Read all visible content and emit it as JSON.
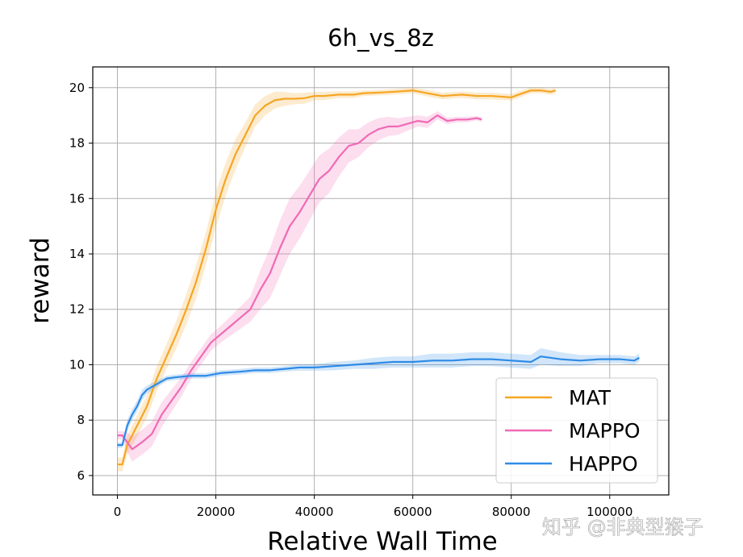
{
  "chart_data": {
    "type": "line",
    "title": "6h_vs_8z",
    "xlabel": "Relative Wall Time",
    "ylabel": "reward",
    "xlim": [
      -5000,
      112000
    ],
    "ylim": [
      5.3,
      20.75
    ],
    "xticks": [
      0,
      20000,
      40000,
      60000,
      80000,
      100000
    ],
    "yticks": [
      6,
      8,
      10,
      12,
      14,
      16,
      18,
      20
    ],
    "grid": true,
    "legend_position": "bottom-right",
    "series": [
      {
        "name": "MAT",
        "color": "#f5a623",
        "x": [
          0,
          1000,
          2000,
          4000,
          6000,
          8000,
          10000,
          12000,
          14000,
          16000,
          18000,
          20000,
          22000,
          24000,
          26000,
          28000,
          30000,
          32000,
          34000,
          36000,
          38000,
          40000,
          42000,
          45000,
          48000,
          50000,
          53000,
          56000,
          60000,
          63000,
          66000,
          70000,
          73000,
          76000,
          80000,
          82000,
          84000,
          86000,
          88000,
          89000
        ],
        "y": [
          6.4,
          6.4,
          7.1,
          7.8,
          8.5,
          9.5,
          10.3,
          11.1,
          12.0,
          13.0,
          14.2,
          15.6,
          16.7,
          17.6,
          18.3,
          19.0,
          19.35,
          19.55,
          19.6,
          19.6,
          19.62,
          19.7,
          19.7,
          19.75,
          19.75,
          19.8,
          19.82,
          19.85,
          19.9,
          19.8,
          19.7,
          19.75,
          19.7,
          19.7,
          19.65,
          19.78,
          19.9,
          19.9,
          19.85,
          19.9
        ],
        "band": [
          0.25,
          0.25,
          0.35,
          0.4,
          0.4,
          0.45,
          0.45,
          0.5,
          0.55,
          0.6,
          0.6,
          0.65,
          0.6,
          0.55,
          0.45,
          0.4,
          0.35,
          0.3,
          0.25,
          0.2,
          0.2,
          0.15,
          0.15,
          0.12,
          0.12,
          0.1,
          0.1,
          0.1,
          0.1,
          0.12,
          0.12,
          0.12,
          0.12,
          0.12,
          0.12,
          0.12,
          0.1,
          0.1,
          0.1,
          0.1
        ]
      },
      {
        "name": "MAPPO",
        "color": "#f06ab4",
        "x": [
          0,
          1000,
          2000,
          3000,
          5000,
          7000,
          9000,
          11000,
          13000,
          15000,
          17000,
          19000,
          21000,
          23000,
          25000,
          27000,
          29000,
          31000,
          33000,
          35000,
          37000,
          39000,
          41000,
          43000,
          45000,
          47000,
          49000,
          51000,
          53000,
          55000,
          57000,
          59000,
          61000,
          63000,
          65000,
          67000,
          69000,
          71000,
          73000,
          74000
        ],
        "y": [
          7.45,
          7.45,
          7.2,
          6.95,
          7.2,
          7.5,
          8.2,
          8.7,
          9.2,
          9.8,
          10.3,
          10.8,
          11.1,
          11.4,
          11.7,
          12.0,
          12.7,
          13.3,
          14.2,
          15.0,
          15.5,
          16.1,
          16.7,
          17.0,
          17.5,
          17.9,
          18.0,
          18.3,
          18.5,
          18.6,
          18.6,
          18.7,
          18.8,
          18.75,
          19.0,
          18.8,
          18.85,
          18.85,
          18.9,
          18.85
        ],
        "band": [
          0.15,
          0.15,
          0.35,
          0.45,
          0.45,
          0.45,
          0.45,
          0.4,
          0.35,
          0.3,
          0.3,
          0.3,
          0.3,
          0.35,
          0.4,
          0.45,
          0.7,
          0.9,
          1.0,
          1.0,
          0.95,
          0.9,
          0.85,
          0.8,
          0.7,
          0.6,
          0.5,
          0.45,
          0.4,
          0.35,
          0.3,
          0.25,
          0.2,
          0.2,
          0.15,
          0.12,
          0.1,
          0.1,
          0.08,
          0.08
        ]
      },
      {
        "name": "HAPPO",
        "color": "#2f8be6",
        "x": [
          0,
          1000,
          2000,
          3000,
          4000,
          5000,
          6000,
          8000,
          10000,
          12000,
          15000,
          18000,
          21000,
          25000,
          28000,
          31000,
          34000,
          37000,
          40000,
          44000,
          48000,
          52000,
          56000,
          60000,
          64000,
          68000,
          72000,
          76000,
          80000,
          84000,
          86000,
          90000,
          94000,
          98000,
          102000,
          105000,
          106000
        ],
        "y": [
          7.1,
          7.1,
          7.8,
          8.2,
          8.5,
          8.9,
          9.1,
          9.3,
          9.5,
          9.55,
          9.6,
          9.6,
          9.7,
          9.75,
          9.8,
          9.8,
          9.85,
          9.9,
          9.9,
          9.95,
          10.0,
          10.05,
          10.1,
          10.1,
          10.15,
          10.15,
          10.2,
          10.2,
          10.15,
          10.1,
          10.3,
          10.2,
          10.15,
          10.2,
          10.2,
          10.15,
          10.25
        ],
        "band": [
          0.1,
          0.1,
          0.2,
          0.2,
          0.2,
          0.2,
          0.15,
          0.12,
          0.1,
          0.1,
          0.1,
          0.1,
          0.1,
          0.1,
          0.1,
          0.1,
          0.1,
          0.12,
          0.12,
          0.15,
          0.15,
          0.2,
          0.2,
          0.2,
          0.25,
          0.25,
          0.25,
          0.25,
          0.25,
          0.25,
          0.3,
          0.25,
          0.2,
          0.15,
          0.15,
          0.15,
          0.15
        ]
      }
    ]
  },
  "watermark": "知乎 @非典型猴子"
}
